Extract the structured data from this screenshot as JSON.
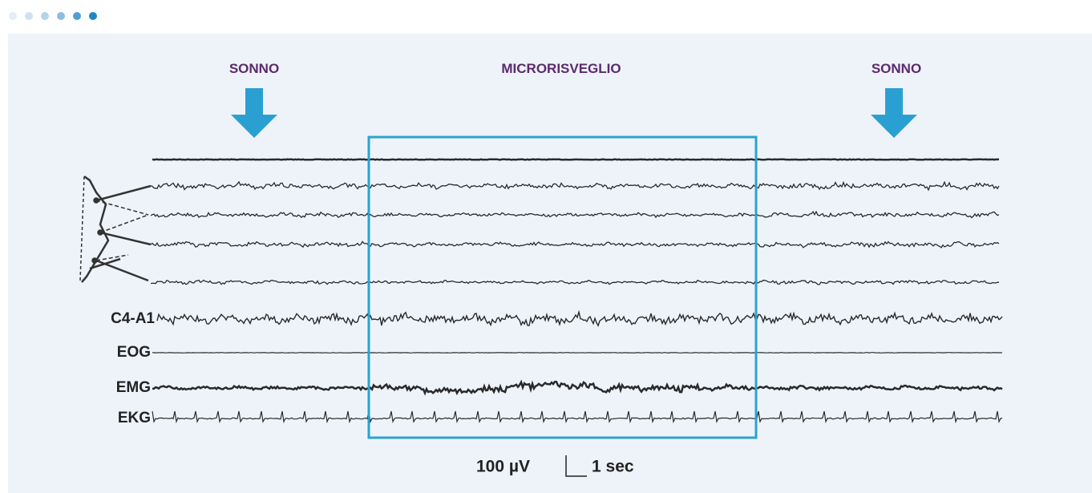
{
  "labels": {
    "left": "SONNO",
    "center": "MICRORISVEGLIO",
    "right": "SONNO"
  },
  "channels": [
    "C4-A1",
    "EOG",
    "EMG",
    "EKG"
  ],
  "scale": {
    "amplitude": "100 µV",
    "time": "1 sec"
  }
}
